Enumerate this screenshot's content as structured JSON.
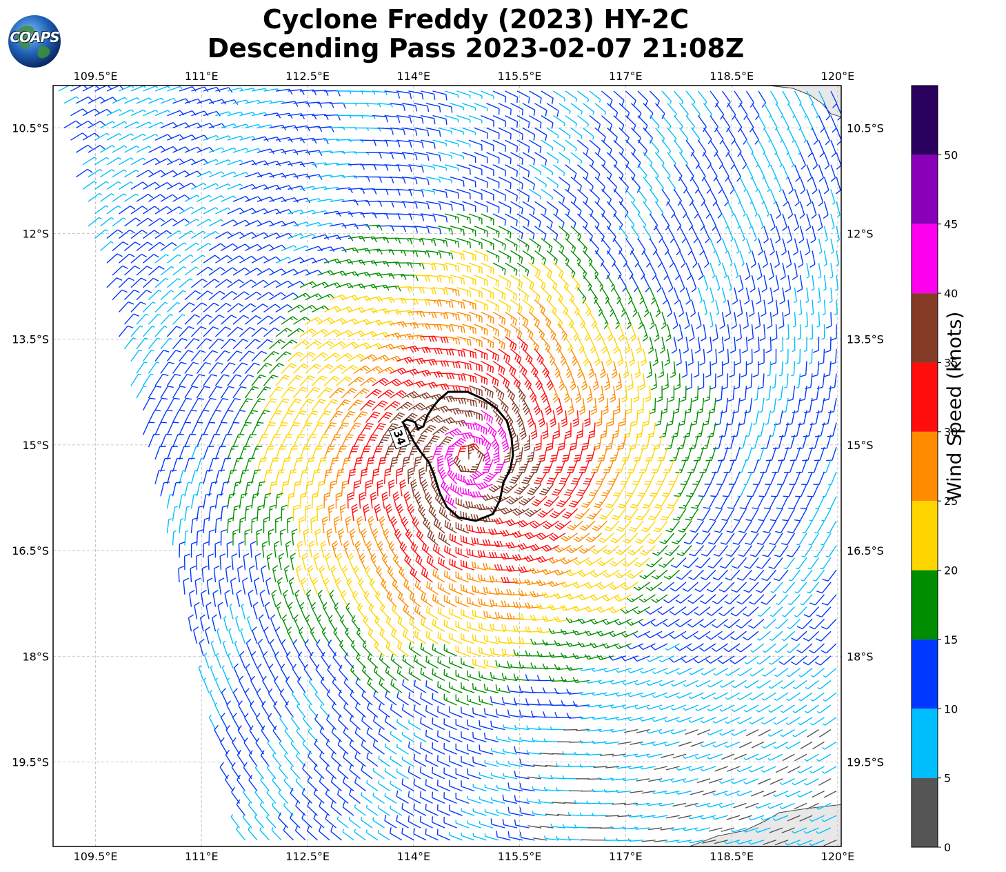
{
  "title": {
    "line1": "Cyclone Freddy (2023) HY-2C",
    "line2": "Descending Pass 2023-02-07 21:08Z"
  },
  "logo": {
    "text": "COAPS",
    "icon": "globe-logo-icon"
  },
  "map": {
    "type": "wind-barb-map",
    "extent": {
      "lon": [
        108.9,
        120.05
      ],
      "lat": [
        -20.7,
        -9.9
      ]
    },
    "lon_ticks": [
      "109.5°E",
      "111°E",
      "112.5°E",
      "114°E",
      "115.5°E",
      "117°E",
      "118.5°E",
      "120°E"
    ],
    "lat_ticks": [
      "10.5°S",
      "12°S",
      "13.5°S",
      "15°S",
      "16.5°S",
      "18°S",
      "19.5°S"
    ],
    "lon_tick_values": [
      109.5,
      111,
      112.5,
      114,
      115.5,
      117,
      118.5,
      120
    ],
    "lat_tick_values": [
      -10.5,
      -12,
      -13.5,
      -15,
      -16.5,
      -18,
      -19.5
    ],
    "grid": "dashed",
    "cyclone_center": {
      "lon": 114.8,
      "lat": -15.2
    },
    "contour_label": "34",
    "land": "Australia coastline at northeast and southeast corners"
  },
  "colorbar": {
    "label": "Wind Speed (knots)",
    "ticks": [
      "0",
      "5",
      "10",
      "15",
      "20",
      "25",
      "30",
      "35",
      "40",
      "45",
      "50"
    ],
    "bins": [
      {
        "min": 0,
        "max": 5,
        "color": "#555555"
      },
      {
        "min": 5,
        "max": 10,
        "color": "#00bfff"
      },
      {
        "min": 10,
        "max": 15,
        "color": "#0038ff"
      },
      {
        "min": 15,
        "max": 20,
        "color": "#008e00"
      },
      {
        "min": 20,
        "max": 25,
        "color": "#ffd500"
      },
      {
        "min": 25,
        "max": 30,
        "color": "#ff8c00"
      },
      {
        "min": 30,
        "max": 35,
        "color": "#ff0d0d"
      },
      {
        "min": 35,
        "max": 40,
        "color": "#833b26"
      },
      {
        "min": 40,
        "max": 45,
        "color": "#ff00ee"
      },
      {
        "min": 45,
        "max": 50,
        "color": "#8a00b8"
      },
      {
        "min": 50,
        "max": 55,
        "color": "#2a005e"
      }
    ]
  }
}
